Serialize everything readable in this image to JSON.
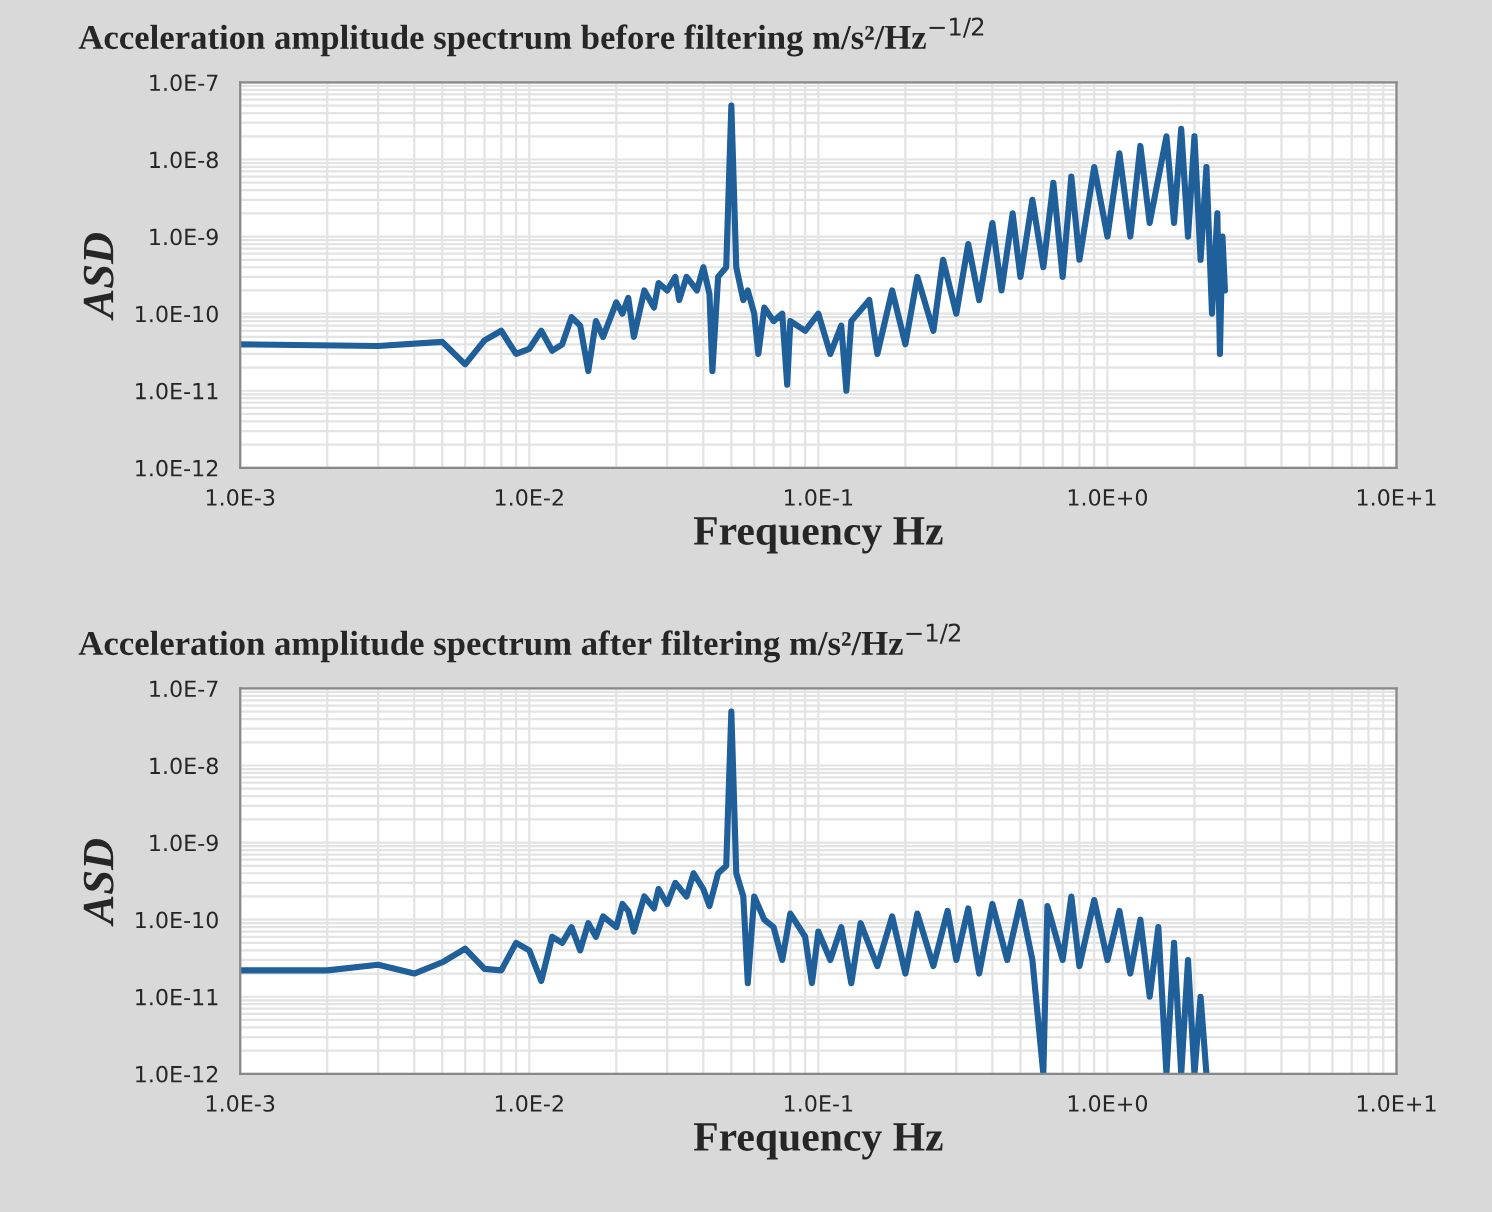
{
  "chart_data": [
    {
      "type": "line",
      "title": "Acceleration amplitude spectrum before filtering m/s²/Hz$^{−1/2}$",
      "xlabel": "Frequency Hz",
      "ylabel": "ASD",
      "log": "xy",
      "grid": true,
      "xlim": [
        0.001,
        10
      ],
      "ylim": [
        1e-12,
        1e-07
      ],
      "xticks": [
        {
          "value": 0.001,
          "label": "1.0E-3"
        },
        {
          "value": 0.01,
          "label": "1.0E-2"
        },
        {
          "value": 0.1,
          "label": "1.0E-1"
        },
        {
          "value": 1,
          "label": "1.0E+0"
        },
        {
          "value": 10,
          "label": "1.0E+1"
        }
      ],
      "yticks": [
        {
          "value": 1e-12,
          "label": "1.0E-12"
        },
        {
          "value": 1e-11,
          "label": "1.0E-11"
        },
        {
          "value": 1e-10,
          "label": "1.0E-10"
        },
        {
          "value": 1e-09,
          "label": "1.0E-9"
        },
        {
          "value": 1e-08,
          "label": "1.0E-8"
        },
        {
          "value": 1e-07,
          "label": "1.0E-7"
        }
      ],
      "series": [
        {
          "color": "#1f5f9a",
          "x": [
            0.001,
            0.003,
            0.005,
            0.006,
            0.007,
            0.008,
            0.009,
            0.01,
            0.011,
            0.012,
            0.013,
            0.014,
            0.015,
            0.016,
            0.017,
            0.018,
            0.02,
            0.021,
            0.022,
            0.023,
            0.025,
            0.027,
            0.028,
            0.03,
            0.032,
            0.033,
            0.035,
            0.038,
            0.04,
            0.042,
            0.043,
            0.045,
            0.048,
            0.05,
            0.052,
            0.055,
            0.057,
            0.06,
            0.062,
            0.065,
            0.07,
            0.075,
            0.078,
            0.08,
            0.09,
            0.1,
            0.11,
            0.12,
            0.125,
            0.13,
            0.15,
            0.16,
            0.18,
            0.2,
            0.22,
            0.25,
            0.27,
            0.3,
            0.33,
            0.36,
            0.4,
            0.43,
            0.47,
            0.5,
            0.55,
            0.6,
            0.65,
            0.7,
            0.75,
            0.8,
            0.9,
            1.0,
            1.1,
            1.2,
            1.3,
            1.4,
            1.6,
            1.7,
            1.8,
            1.9,
            2.0,
            2.1,
            2.2,
            2.3,
            2.4,
            2.45,
            2.5,
            2.55
          ],
          "values": [
            4e-11,
            3.8e-11,
            4.3e-11,
            2.2e-11,
            4.5e-11,
            6e-11,
            3e-11,
            3.5e-11,
            6e-11,
            3.3e-11,
            4e-11,
            9e-11,
            7e-11,
            1.8e-11,
            8e-11,
            5e-11,
            1.4e-10,
            1e-10,
            1.6e-10,
            5e-11,
            2e-10,
            1.2e-10,
            2.5e-10,
            2e-10,
            3e-10,
            1.5e-10,
            3e-10,
            2e-10,
            4e-10,
            1.8e-10,
            1.8e-11,
            3e-10,
            4e-10,
            5e-08,
            4e-10,
            1.5e-10,
            2e-10,
            1e-10,
            3e-11,
            1.2e-10,
            8e-11,
            1e-10,
            1.2e-11,
            8e-11,
            6e-11,
            1e-10,
            3e-11,
            7e-11,
            1e-11,
            8e-11,
            1.5e-10,
            3e-11,
            2e-10,
            4e-11,
            3e-10,
            6e-11,
            5e-10,
            1e-10,
            8e-10,
            1.5e-10,
            1.5e-09,
            2e-10,
            2e-09,
            3e-10,
            3e-09,
            4e-10,
            5e-09,
            3e-10,
            6e-09,
            5e-10,
            8e-09,
            1e-09,
            1.2e-08,
            1e-09,
            1.5e-08,
            1.5e-09,
            2e-08,
            1.5e-09,
            2.5e-08,
            1e-09,
            2e-08,
            5e-10,
            8e-09,
            1e-10,
            2e-09,
            3e-11,
            1e-09,
            2e-10
          ]
        }
      ]
    },
    {
      "type": "line",
      "title": "Acceleration amplitude spectrum after filtering m/s²/Hz$^{−1/2}$",
      "xlabel": "Frequency Hz",
      "ylabel": "ASD",
      "log": "xy",
      "grid": true,
      "xlim": [
        0.001,
        10
      ],
      "ylim": [
        1e-12,
        1e-07
      ],
      "xticks": [
        {
          "value": 0.001,
          "label": "1.0E-3"
        },
        {
          "value": 0.01,
          "label": "1.0E-2"
        },
        {
          "value": 0.1,
          "label": "1.0E-1"
        },
        {
          "value": 1,
          "label": "1.0E+0"
        },
        {
          "value": 10,
          "label": "1.0E+1"
        }
      ],
      "yticks": [
        {
          "value": 1e-12,
          "label": "1.0E-12"
        },
        {
          "value": 1e-11,
          "label": "1.0E-11"
        },
        {
          "value": 1e-10,
          "label": "1.0E-10"
        },
        {
          "value": 1e-09,
          "label": "1.0E-9"
        },
        {
          "value": 1e-08,
          "label": "1.0E-8"
        },
        {
          "value": 1e-07,
          "label": "1.0E-7"
        }
      ],
      "series": [
        {
          "color": "#1f5f9a",
          "x": [
            0.001,
            0.002,
            0.003,
            0.004,
            0.005,
            0.006,
            0.007,
            0.008,
            0.009,
            0.01,
            0.011,
            0.012,
            0.013,
            0.014,
            0.015,
            0.016,
            0.017,
            0.018,
            0.02,
            0.021,
            0.022,
            0.023,
            0.025,
            0.027,
            0.028,
            0.03,
            0.032,
            0.035,
            0.037,
            0.04,
            0.042,
            0.045,
            0.048,
            0.05,
            0.052,
            0.055,
            0.057,
            0.06,
            0.065,
            0.07,
            0.075,
            0.08,
            0.09,
            0.095,
            0.1,
            0.11,
            0.12,
            0.13,
            0.14,
            0.16,
            0.18,
            0.2,
            0.22,
            0.25,
            0.28,
            0.3,
            0.33,
            0.36,
            0.4,
            0.45,
            0.5,
            0.55,
            0.6,
            0.62,
            0.7,
            0.75,
            0.8,
            0.9,
            1.0,
            1.1,
            1.2,
            1.3,
            1.4,
            1.5,
            1.6,
            1.7,
            1.8,
            1.9,
            2.0,
            2.1,
            2.2
          ],
          "values": [
            2.2e-11,
            2.2e-11,
            2.6e-11,
            2e-11,
            2.8e-11,
            4.2e-11,
            2.3e-11,
            2.2e-11,
            5e-11,
            4e-11,
            1.6e-11,
            6e-11,
            5e-11,
            8e-11,
            4e-11,
            9e-11,
            6e-11,
            1.1e-10,
            8e-11,
            1.6e-10,
            1.3e-10,
            7e-11,
            2e-10,
            1.4e-10,
            2.5e-10,
            1.6e-10,
            3e-10,
            2e-10,
            4e-10,
            2.5e-10,
            1.5e-10,
            4e-10,
            5e-10,
            5e-08,
            4e-10,
            2e-10,
            1.5e-11,
            2e-10,
            1e-10,
            8e-11,
            3e-11,
            1.2e-10,
            6e-11,
            1.5e-11,
            7e-11,
            3e-11,
            8e-11,
            1.5e-11,
            9e-11,
            2.5e-11,
            1.1e-10,
            2e-11,
            1.2e-10,
            2.5e-11,
            1.3e-10,
            3e-11,
            1.4e-10,
            2e-11,
            1.6e-10,
            3e-11,
            1.7e-10,
            3e-11,
            1e-12,
            1.5e-10,
            3e-11,
            2e-10,
            2.5e-11,
            1.8e-10,
            3e-11,
            1.3e-10,
            2e-11,
            1e-10,
            1e-11,
            8e-11,
            1e-12,
            5e-11,
            1e-12,
            3e-11,
            1e-12,
            1e-11,
            1e-12
          ]
        }
      ]
    }
  ]
}
